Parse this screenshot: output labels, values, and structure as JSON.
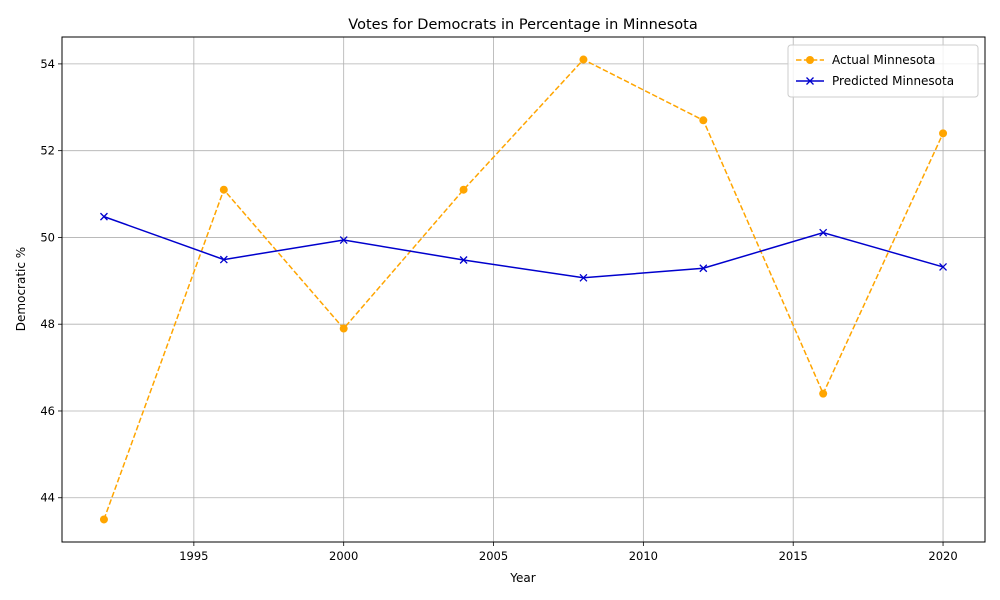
{
  "chart_data": {
    "type": "line",
    "title": "Votes for Democrats in Percentage in Minnesota",
    "xlabel": "Year",
    "ylabel": "Democratic %",
    "x": [
      1992,
      1996,
      2000,
      2004,
      2008,
      2012,
      2016,
      2020
    ],
    "series": [
      {
        "name": "Actual Minnesota",
        "values": [
          43.5,
          51.1,
          47.9,
          51.1,
          54.1,
          52.7,
          46.4,
          52.4
        ],
        "color": "#ffa500",
        "line_style": "dashed",
        "marker": "circle"
      },
      {
        "name": "Predicted Minnesota",
        "values": [
          50.48,
          49.49,
          49.94,
          49.48,
          49.07,
          49.29,
          50.11,
          49.32
        ],
        "color": "#0000cd",
        "line_style": "solid",
        "marker": "x"
      }
    ],
    "xlim": [
      1990.6,
      2021.4
    ],
    "ylim": [
      42.98,
      54.62
    ],
    "xticks": [
      1995,
      2000,
      2005,
      2010,
      2015,
      2020
    ],
    "yticks": [
      44,
      46,
      48,
      50,
      52,
      54
    ],
    "grid": true,
    "legend_position": "top-right"
  }
}
